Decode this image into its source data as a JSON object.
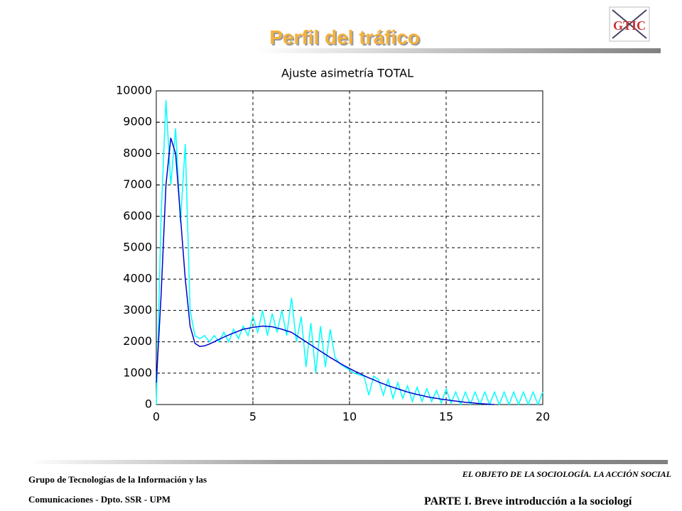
{
  "slide_title": "Perfil del tráfico",
  "logo": "GTIC",
  "footer": {
    "left_line1": "Grupo de Tecnologías de la Información y las",
    "left_line2": "Comunicaciones - Dpto. SSR - UPM",
    "right_line1": "EL OBJETO DE LA SOCIOLOGÍA. LA ACCIÓN SOCIAL",
    "right_line2": "PARTE I. Breve introducción a la sociologí"
  },
  "chart_data": {
    "type": "line",
    "title": "Ajuste asimetría TOTAL",
    "x": [
      0,
      0.25,
      0.5,
      0.75,
      1,
      1.25,
      1.5,
      1.75,
      2,
      2.25,
      2.5,
      2.75,
      3,
      3.25,
      3.5,
      3.75,
      4,
      4.25,
      4.5,
      4.75,
      5,
      5.25,
      5.5,
      5.75,
      6,
      6.25,
      6.5,
      6.75,
      7,
      7.25,
      7.5,
      7.75,
      8,
      8.25,
      8.5,
      8.75,
      9,
      9.25,
      9.5,
      9.75,
      10,
      10.25,
      10.5,
      10.75,
      11,
      11.25,
      11.5,
      11.75,
      12,
      12.25,
      12.5,
      12.75,
      13,
      13.25,
      13.5,
      13.75,
      14,
      14.25,
      14.5,
      14.75,
      15,
      15.25,
      15.5,
      15.75,
      16,
      16.25,
      16.5,
      16.75,
      17,
      17.25,
      17.5,
      17.75,
      18,
      18.25,
      18.5,
      18.75,
      19,
      19.25,
      19.5,
      19.75,
      20
    ],
    "series": [
      {
        "color": "#00ffff",
        "values": [
          0,
          6000,
          9700,
          7000,
          8800,
          5800,
          8300,
          3000,
          2200,
          2100,
          2200,
          2000,
          2200,
          2000,
          2300,
          2000,
          2400,
          2100,
          2500,
          2200,
          2800,
          2300,
          3000,
          2200,
          2900,
          2300,
          3000,
          2200,
          3400,
          2000,
          2800,
          1200,
          2600,
          1000,
          2500,
          1200,
          2400,
          1500,
          1300,
          1200,
          1100,
          1000,
          950,
          900,
          300,
          900,
          800,
          300,
          800,
          200,
          700,
          200,
          600,
          100,
          550,
          100,
          500,
          100,
          450,
          50,
          500,
          50,
          400,
          0,
          400,
          0,
          400,
          0,
          400,
          0,
          400,
          0,
          400,
          0,
          400,
          0,
          400,
          0,
          400,
          0,
          400
        ]
      },
      {
        "color": "#0000cc",
        "values": [
          700,
          3500,
          7000,
          8500,
          8000,
          6000,
          4000,
          2500,
          1950,
          1850,
          1870,
          1930,
          2000,
          2080,
          2150,
          2220,
          2280,
          2340,
          2400,
          2430,
          2460,
          2480,
          2500,
          2490,
          2480,
          2440,
          2400,
          2350,
          2300,
          2200,
          2100,
          2000,
          1900,
          1800,
          1700,
          1600,
          1500,
          1410,
          1320,
          1230,
          1150,
          1070,
          1000,
          920,
          850,
          790,
          720,
          660,
          600,
          550,
          500,
          450,
          400,
          360,
          320,
          290,
          250,
          220,
          200,
          170,
          150,
          130,
          110,
          90,
          70,
          60,
          45,
          30,
          20,
          10,
          0,
          null,
          null,
          null,
          null,
          null,
          null,
          null,
          null,
          null,
          null
        ]
      }
    ],
    "xlim": [
      0,
      20
    ],
    "xticks": [
      0,
      5,
      10,
      15,
      20
    ],
    "ylim": [
      0,
      10000
    ],
    "yticks": [
      0,
      1000,
      2000,
      3000,
      4000,
      5000,
      6000,
      7000,
      8000,
      9000,
      10000
    ],
    "grid": true
  }
}
